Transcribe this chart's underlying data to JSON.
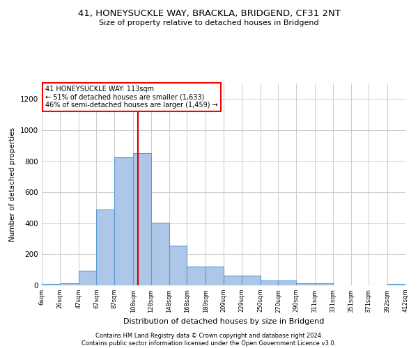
{
  "title_line1": "41, HONEYSUCKLE WAY, BRACKLA, BRIDGEND, CF31 2NT",
  "title_line2": "Size of property relative to detached houses in Bridgend",
  "xlabel": "Distribution of detached houses by size in Bridgend",
  "ylabel": "Number of detached properties",
  "footnote": "Contains HM Land Registry data © Crown copyright and database right 2024.\nContains public sector information licensed under the Open Government Licence v3.0.",
  "annotation_line1": "41 HONEYSUCKLE WAY: 113sqm",
  "annotation_line2": "← 51% of detached houses are smaller (1,633)",
  "annotation_line3": "46% of semi-detached houses are larger (1,459) →",
  "bar_color": "#aec6e8",
  "bar_edge_color": "#5b9bd5",
  "vline_color": "#cc0000",
  "vline_x": 113,
  "ylim": [
    0,
    1300
  ],
  "yticks": [
    0,
    200,
    400,
    600,
    800,
    1000,
    1200
  ],
  "bin_edges": [
    6,
    26,
    47,
    67,
    87,
    108,
    128,
    148,
    168,
    189,
    209,
    229,
    250,
    270,
    290,
    311,
    331,
    351,
    371,
    392,
    412
  ],
  "bar_heights": [
    10,
    15,
    95,
    490,
    825,
    850,
    405,
    255,
    120,
    120,
    65,
    65,
    30,
    30,
    15,
    15,
    0,
    0,
    0,
    10
  ]
}
